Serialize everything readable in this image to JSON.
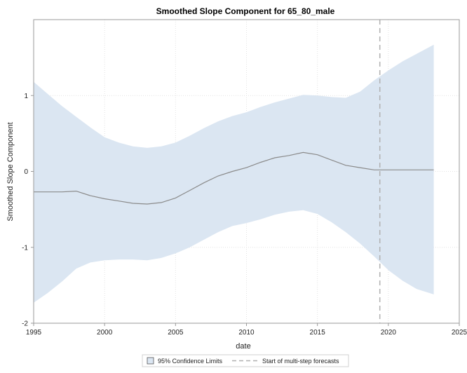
{
  "chart_data": {
    "type": "line",
    "title": "Smoothed Slope Component for 65_80_male",
    "xlabel": "date",
    "ylabel": "Smoothed Slope Component",
    "xlim": [
      1995,
      2025
    ],
    "ylim": [
      -2,
      2
    ],
    "x_ticks": [
      "1995",
      "2000",
      "2005",
      "2010",
      "2015",
      "2020",
      "2025"
    ],
    "y_ticks": [
      "-2",
      "-1",
      "0",
      "1"
    ],
    "grid": true,
    "colors": {
      "band": "#dbe6f2",
      "line": "#8a8a8a",
      "forecast_line": "#b0b0b0",
      "grid": "#e3e3e3",
      "frame": "#9a9a9a"
    },
    "series": [
      {
        "x": [
          1995,
          1997,
          1998,
          1999,
          2000,
          2001,
          2002,
          2003,
          2004,
          2005,
          2006,
          2007,
          2008,
          2009,
          2010,
          2011,
          2012,
          2013,
          2014,
          2015,
          2016,
          2017,
          2018,
          2019,
          2020,
          2021,
          2022,
          2023.2
        ],
        "values": [
          -0.27,
          -0.27,
          -0.26,
          -0.32,
          -0.36,
          -0.39,
          -0.42,
          -0.43,
          -0.41,
          -0.35,
          -0.25,
          -0.15,
          -0.06,
          0.0,
          0.05,
          0.12,
          0.18,
          0.21,
          0.25,
          0.22,
          0.15,
          0.08,
          0.05,
          0.02,
          0.02,
          0.02,
          0.02,
          0.02
        ]
      },
      {
        "name": "95% Confidence Limits",
        "type": "band",
        "x": [
          1995,
          1996,
          1997,
          1998,
          1999,
          2000,
          2001,
          2002,
          2003,
          2004,
          2005,
          2006,
          2007,
          2008,
          2009,
          2010,
          2011,
          2012,
          2013,
          2014,
          2015,
          2016,
          2017,
          2018,
          2019,
          2020,
          2021,
          2022,
          2023.2
        ],
        "upper": [
          1.18,
          1.02,
          0.86,
          0.72,
          0.58,
          0.45,
          0.38,
          0.33,
          0.31,
          0.33,
          0.38,
          0.47,
          0.57,
          0.66,
          0.73,
          0.78,
          0.85,
          0.91,
          0.96,
          1.01,
          1.0,
          0.98,
          0.97,
          1.05,
          1.2,
          1.33,
          1.45,
          1.55,
          1.67
        ],
        "lower": [
          -1.73,
          -1.6,
          -1.45,
          -1.28,
          -1.2,
          -1.17,
          -1.16,
          -1.16,
          -1.17,
          -1.14,
          -1.08,
          -1.0,
          -0.9,
          -0.8,
          -0.72,
          -0.68,
          -0.63,
          -0.57,
          -0.53,
          -0.51,
          -0.56,
          -0.67,
          -0.8,
          -0.95,
          -1.12,
          -1.3,
          -1.44,
          -1.55,
          -1.62
        ]
      }
    ],
    "reference_line": {
      "x": 2019.4,
      "label": "Start of multi-step forecasts"
    },
    "legend": {
      "position": "bottom-center",
      "items": [
        "95% Confidence Limits",
        "Start of multi-step forecasts"
      ]
    }
  }
}
